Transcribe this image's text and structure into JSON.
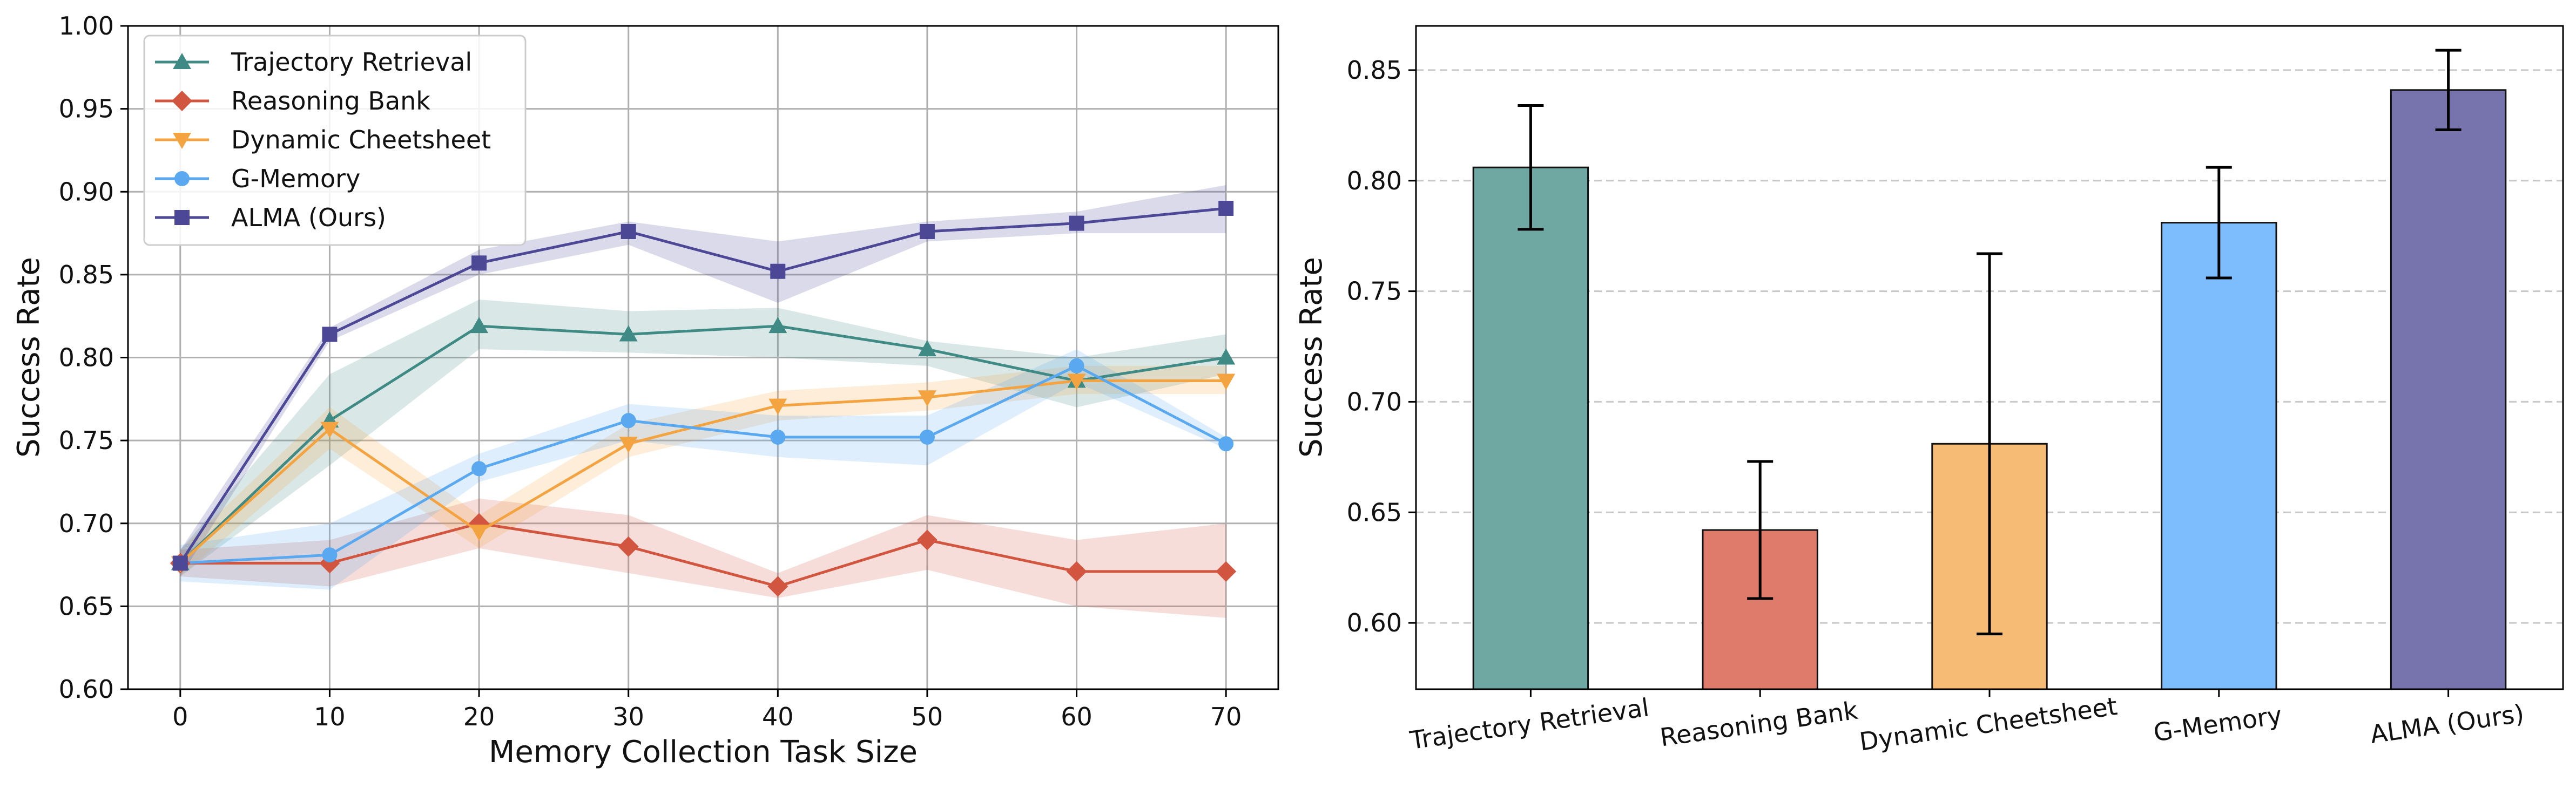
{
  "chart_data": [
    {
      "type": "line",
      "xlabel": "Memory Collection Task Size",
      "ylabel": "Success Rate",
      "xlim": [
        -3.5,
        73.5
      ],
      "ylim": [
        0.6,
        1.0
      ],
      "x_ticks": [
        0,
        10,
        20,
        30,
        40,
        50,
        60,
        70
      ],
      "y_ticks": [
        0.6,
        0.65,
        0.7,
        0.75,
        0.8,
        0.85,
        0.9,
        0.95,
        1.0
      ],
      "grid": true,
      "legend_position": "top-left",
      "x": [
        0,
        10,
        20,
        30,
        40,
        50,
        60,
        70
      ],
      "series": [
        {
          "name": "Trajectory Retrieval",
          "color": "#3f8a84",
          "marker": "triangle-up",
          "values": [
            0.676,
            0.762,
            0.819,
            0.814,
            0.819,
            0.805,
            0.786,
            0.8
          ],
          "lower": [
            0.668,
            0.735,
            0.805,
            0.803,
            0.8,
            0.795,
            0.77,
            0.79
          ],
          "upper": [
            0.684,
            0.79,
            0.835,
            0.828,
            0.83,
            0.81,
            0.8,
            0.814
          ]
        },
        {
          "name": "Reasoning Bank",
          "color": "#d2553f",
          "marker": "diamond",
          "values": [
            0.676,
            0.676,
            0.7,
            0.686,
            0.662,
            0.69,
            0.671,
            0.671
          ],
          "lower": [
            0.668,
            0.662,
            0.685,
            0.67,
            0.655,
            0.672,
            0.65,
            0.643
          ],
          "upper": [
            0.684,
            0.69,
            0.715,
            0.705,
            0.67,
            0.705,
            0.69,
            0.7
          ]
        },
        {
          "name": "Dynamic Cheetsheet",
          "color": "#f4a341",
          "marker": "triangle-down",
          "values": [
            0.676,
            0.757,
            0.695,
            0.748,
            0.771,
            0.776,
            0.786,
            0.786
          ],
          "lower": [
            0.668,
            0.745,
            0.685,
            0.74,
            0.762,
            0.768,
            0.778,
            0.778
          ],
          "upper": [
            0.684,
            0.77,
            0.705,
            0.76,
            0.78,
            0.785,
            0.795,
            0.795
          ]
        },
        {
          "name": "G-Memory",
          "color": "#5aa9f0",
          "marker": "circle",
          "values": [
            0.676,
            0.681,
            0.733,
            0.762,
            0.752,
            0.752,
            0.795,
            0.748
          ],
          "lower": [
            0.665,
            0.66,
            0.725,
            0.75,
            0.74,
            0.735,
            0.785,
            0.745
          ],
          "upper": [
            0.687,
            0.7,
            0.742,
            0.772,
            0.765,
            0.765,
            0.805,
            0.752
          ]
        },
        {
          "name": "ALMA (Ours)",
          "color": "#4c4896",
          "marker": "square",
          "values": [
            0.676,
            0.814,
            0.857,
            0.876,
            0.852,
            0.876,
            0.881,
            0.89
          ],
          "lower": [
            0.668,
            0.81,
            0.85,
            0.868,
            0.833,
            0.87,
            0.875,
            0.875
          ],
          "upper": [
            0.684,
            0.818,
            0.865,
            0.882,
            0.87,
            0.882,
            0.888,
            0.904
          ]
        }
      ]
    },
    {
      "type": "bar",
      "ylabel": "Success Rate",
      "ylim": [
        0.57,
        0.87
      ],
      "y_ticks": [
        0.6,
        0.65,
        0.7,
        0.75,
        0.8,
        0.85
      ],
      "grid": "y-dashed",
      "categories": [
        "Trajectory Retrieval",
        "Reasoning Bank",
        "Dynamic Cheetsheet",
        "G-Memory",
        "ALMA (Ours)"
      ],
      "values": [
        0.806,
        0.642,
        0.681,
        0.781,
        0.841
      ],
      "error_lower": [
        0.778,
        0.611,
        0.595,
        0.756,
        0.823
      ],
      "error_upper": [
        0.834,
        0.673,
        0.767,
        0.806,
        0.859
      ],
      "colors": [
        "#6fa8a3",
        "#df7b6b",
        "#f6bb74",
        "#7dbcfd",
        "#7773ad"
      ]
    }
  ]
}
